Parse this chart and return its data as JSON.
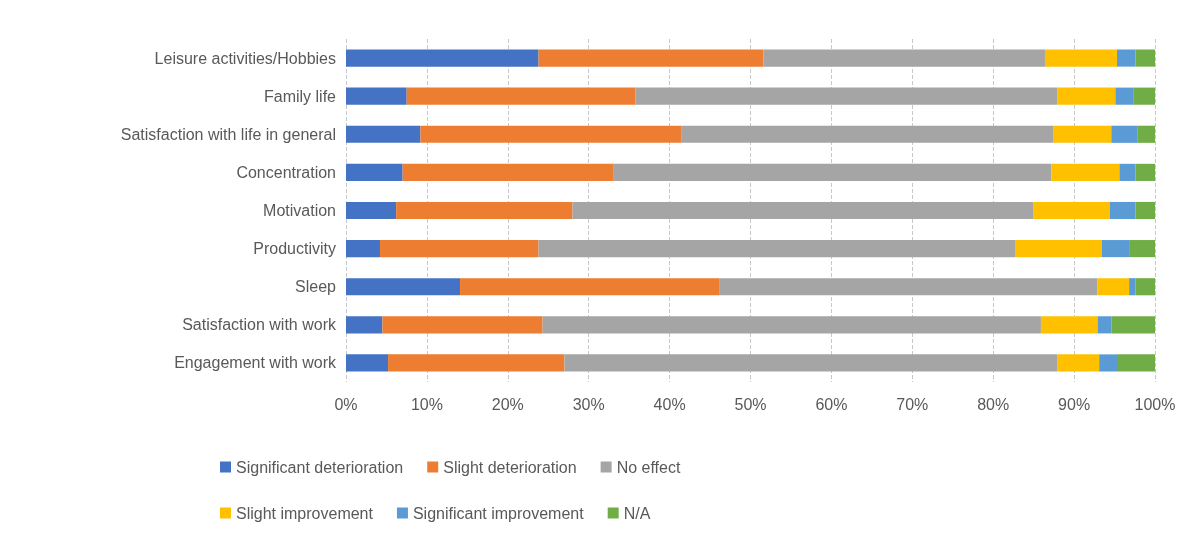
{
  "chart_data": {
    "type": "bar",
    "orientation": "horizontal",
    "stacked": true,
    "grid": "x",
    "legend": "bottom",
    "categories": [
      "Leisure activities/Hobbies",
      "Family life",
      "Satisfaction with life in general",
      "Concentration",
      "Motivation",
      "Productivity",
      "Sleep",
      "Satisfaction with work",
      "Engagement with work"
    ],
    "xlim": [
      0,
      100
    ],
    "xticks": [
      {
        "value": 0,
        "label": "0%"
      },
      {
        "value": 10,
        "label": "10%"
      },
      {
        "value": 20,
        "label": "20%"
      },
      {
        "value": 30,
        "label": "30%"
      },
      {
        "value": 40,
        "label": "40%"
      },
      {
        "value": 50,
        "label": "50%"
      },
      {
        "value": 60,
        "label": "60%"
      },
      {
        "value": 70,
        "label": "70%"
      },
      {
        "value": 80,
        "label": "80%"
      },
      {
        "value": 90,
        "label": "90%"
      },
      {
        "value": 100,
        "label": "100%"
      }
    ],
    "series": [
      {
        "name": "Significant deterioration",
        "color": "#4472c4",
        "values": [
          23.8,
          7.5,
          9.2,
          7.0,
          6.2,
          4.2,
          14.1,
          4.5,
          5.2
        ]
      },
      {
        "name": "Slight deterioration",
        "color": "#ed7d31",
        "values": [
          27.8,
          28.3,
          32.3,
          26.1,
          21.8,
          19.6,
          32.1,
          19.8,
          21.8
        ]
      },
      {
        "name": "No effect",
        "color": "#a5a5a5",
        "values": [
          34.8,
          52.1,
          45.9,
          54.1,
          57.0,
          58.9,
          46.7,
          61.6,
          60.9
        ]
      },
      {
        "name": "Slight improvement",
        "color": "#ffc000",
        "values": [
          8.9,
          7.2,
          7.2,
          8.4,
          9.4,
          10.7,
          3.9,
          7.0,
          5.2
        ]
      },
      {
        "name": "Significant improvement",
        "color": "#5b9bd5",
        "values": [
          2.3,
          2.2,
          3.2,
          2.0,
          3.2,
          3.4,
          0.8,
          1.7,
          2.2
        ]
      },
      {
        "name": "N/A",
        "color": "#70ad47",
        "values": [
          2.4,
          2.7,
          2.2,
          2.4,
          2.4,
          3.2,
          2.4,
          5.4,
          4.7
        ]
      }
    ]
  }
}
